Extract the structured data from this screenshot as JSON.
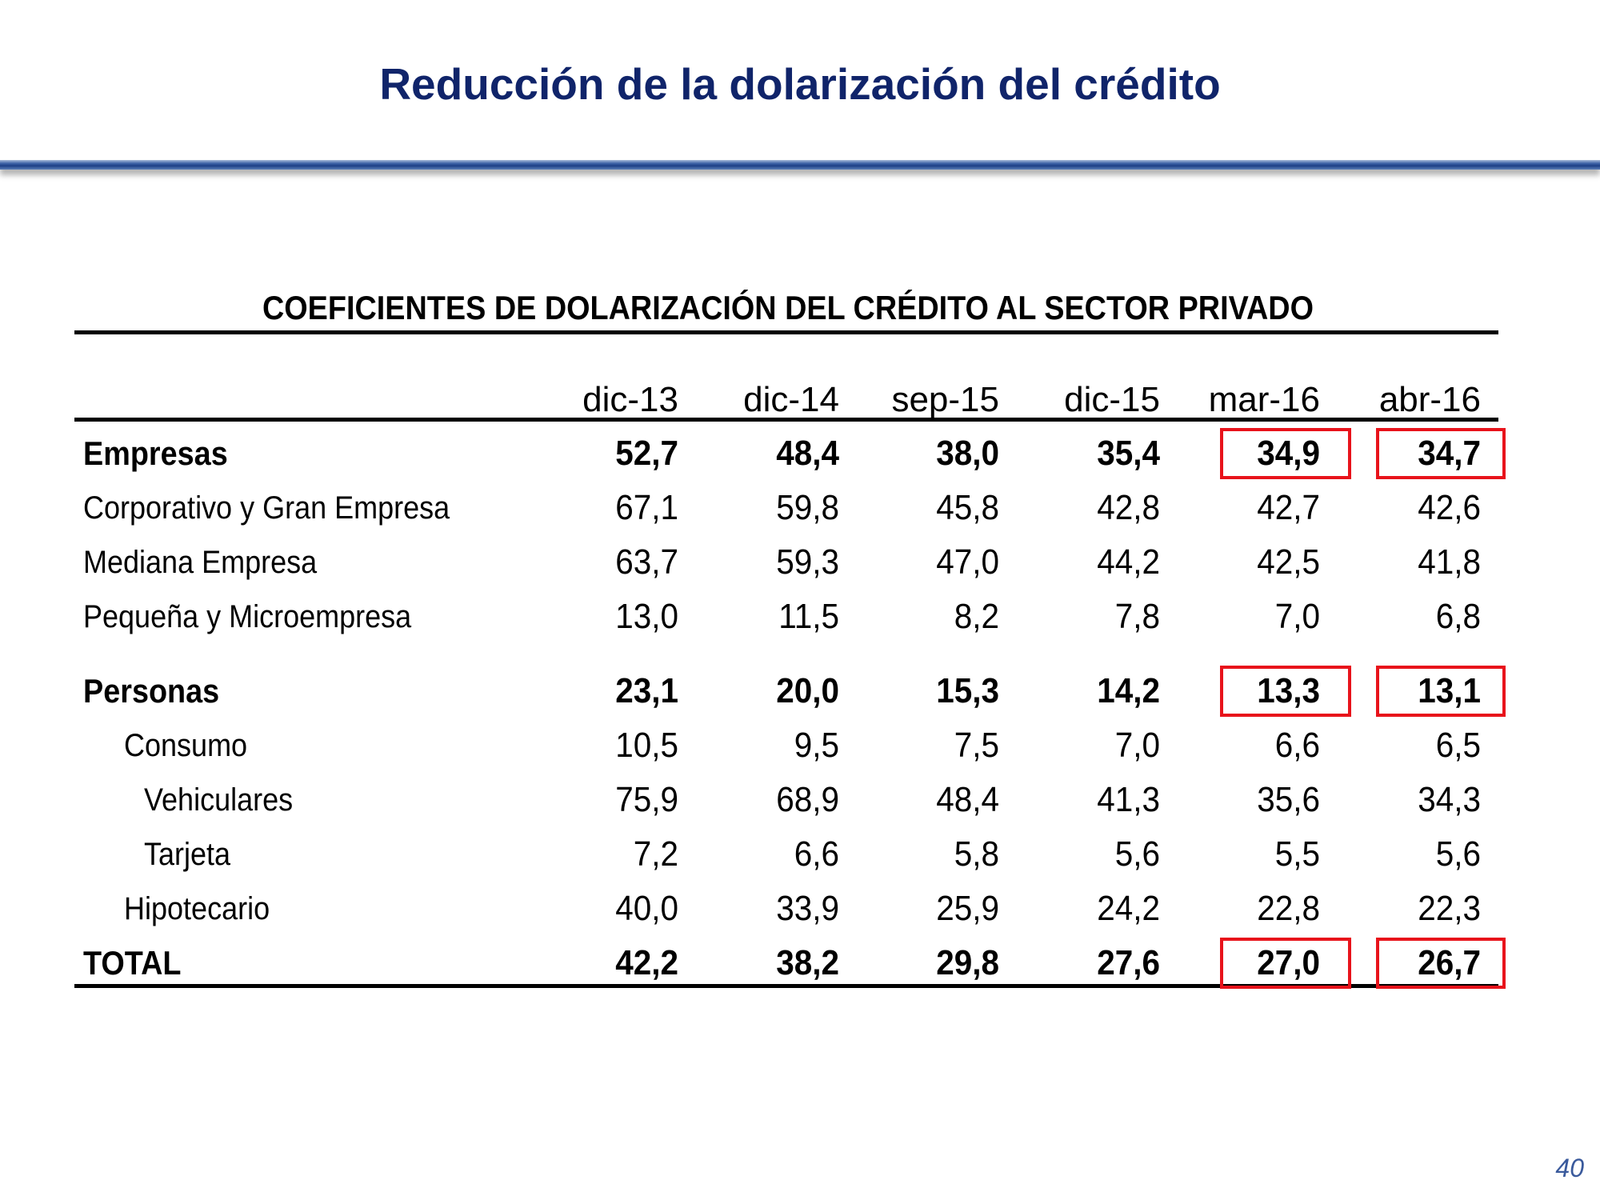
{
  "slide": {
    "title": "Reducción de la dolarización del crédito",
    "page_number": "40",
    "colors": {
      "title": "#10246a",
      "highlight_border": "#e8131b"
    }
  },
  "table": {
    "title": "COEFICIENTES DE DOLARIZACIÓN DEL CRÉDITO AL SECTOR PRIVADO",
    "columns": [
      "dic-13",
      "dic-14",
      "sep-15",
      "dic-15",
      "mar-16",
      "abr-16"
    ],
    "rows": [
      {
        "label": "Empresas",
        "bold": true,
        "indent": 0,
        "values": [
          "52,7",
          "48,4",
          "38,0",
          "35,4",
          "34,9",
          "34,7"
        ],
        "highlight_last_two": true
      },
      {
        "label": "Corporativo y Gran Empresa",
        "bold": false,
        "indent": 0,
        "values": [
          "67,1",
          "59,8",
          "45,8",
          "42,8",
          "42,7",
          "42,6"
        ]
      },
      {
        "label": "Mediana Empresa",
        "bold": false,
        "indent": 0,
        "values": [
          "63,7",
          "59,3",
          "47,0",
          "44,2",
          "42,5",
          "41,8"
        ]
      },
      {
        "label": "Pequeña y Microempresa",
        "bold": false,
        "indent": 0,
        "values": [
          "13,0",
          "11,5",
          "8,2",
          "7,8",
          "7,0",
          "6,8"
        ]
      },
      {
        "label": "Personas",
        "bold": true,
        "indent": 0,
        "values": [
          "23,1",
          "20,0",
          "15,3",
          "14,2",
          "13,3",
          "13,1"
        ],
        "highlight_last_two": true
      },
      {
        "label": "Consumo",
        "bold": false,
        "indent": 1,
        "values": [
          "10,5",
          "9,5",
          "7,5",
          "7,0",
          "6,6",
          "6,5"
        ]
      },
      {
        "label": "Vehiculares",
        "bold": false,
        "indent": 2,
        "values": [
          "75,9",
          "68,9",
          "48,4",
          "41,3",
          "35,6",
          "34,3"
        ]
      },
      {
        "label": "Tarjeta",
        "bold": false,
        "indent": 2,
        "values": [
          "7,2",
          "6,6",
          "5,8",
          "5,6",
          "5,5",
          "5,6"
        ]
      },
      {
        "label": "Hipotecario",
        "bold": false,
        "indent": 1,
        "values": [
          "40,0",
          "33,9",
          "25,9",
          "24,2",
          "22,8",
          "22,3"
        ]
      },
      {
        "label": "TOTAL",
        "bold": true,
        "indent": 0,
        "values": [
          "42,2",
          "38,2",
          "29,8",
          "27,6",
          "27,0",
          "26,7"
        ],
        "highlight_last_two": true
      }
    ]
  }
}
